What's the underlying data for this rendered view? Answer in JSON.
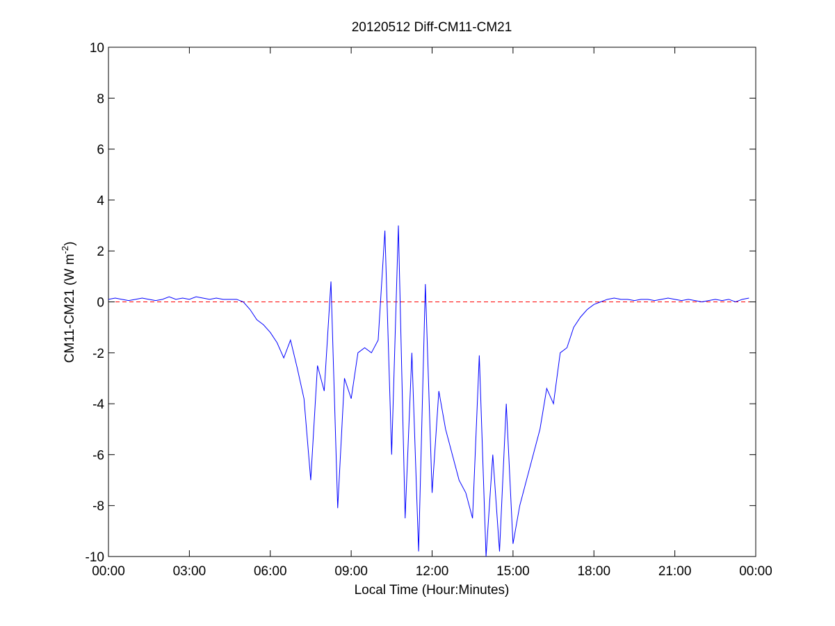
{
  "chart_data": {
    "type": "line",
    "title": "20120512 Diff-CM11-CM21",
    "xlabel": "Local Time (Hour:Minutes)",
    "ylabel": "CM11-CM21 (W m",
    "ylabel_sup": "-2",
    "ylabel_end": ")",
    "x": [
      0,
      0.25,
      0.5,
      0.75,
      1,
      1.25,
      1.5,
      1.75,
      2,
      2.25,
      2.5,
      2.75,
      3,
      3.25,
      3.5,
      3.75,
      4,
      4.25,
      4.5,
      4.75,
      5,
      5.25,
      5.5,
      5.75,
      6,
      6.25,
      6.5,
      6.75,
      7,
      7.25,
      7.5,
      7.75,
      8,
      8.25,
      8.5,
      8.75,
      9,
      9.25,
      9.5,
      9.75,
      10,
      10.25,
      10.5,
      10.75,
      11,
      11.25,
      11.5,
      11.75,
      12,
      12.25,
      12.5,
      12.75,
      13,
      13.25,
      13.5,
      13.75,
      14,
      14.25,
      14.5,
      14.75,
      15,
      15.25,
      15.5,
      15.75,
      16,
      16.25,
      16.5,
      16.75,
      17,
      17.25,
      17.5,
      17.75,
      18,
      18.25,
      18.5,
      18.75,
      19,
      19.25,
      19.5,
      19.75,
      20,
      20.25,
      20.5,
      20.75,
      21,
      21.25,
      21.5,
      21.75,
      22,
      22.25,
      22.5,
      22.75,
      23,
      23.25,
      23.5,
      23.75
    ],
    "series": [
      {
        "name": "CM11-CM21",
        "color": "#0000ff",
        "values": [
          0.1,
          0.15,
          0.1,
          0.05,
          0.1,
          0.15,
          0.1,
          0.05,
          0.1,
          0.2,
          0.1,
          0.15,
          0.1,
          0.2,
          0.15,
          0.1,
          0.15,
          0.1,
          0.1,
          0.1,
          0,
          -0.3,
          -0.7,
          -0.9,
          -1.2,
          -1.6,
          -2.2,
          -1.5,
          -2.6,
          -3.8,
          -7.0,
          -2.5,
          -3.5,
          0.8,
          -8.1,
          -3.0,
          -3.8,
          -2.0,
          -1.8,
          -2.0,
          -1.5,
          2.8,
          -6.0,
          3.0,
          -8.5,
          -2.0,
          -9.8,
          0.7,
          -7.5,
          -3.5,
          -5.0,
          -6.0,
          -7.0,
          -7.5,
          -8.5,
          -2.1,
          -10,
          -6,
          -9.8,
          -4,
          -9.5,
          -8,
          -7,
          -6,
          -5,
          -3.4,
          -4,
          -2,
          -1.8,
          -1,
          -0.6,
          -0.3,
          -0.1,
          0,
          0.1,
          0.15,
          0.1,
          0.1,
          0.05,
          0.1,
          0.1,
          0.05,
          0.1,
          0.15,
          0.1,
          0.05,
          0.1,
          0.05,
          0,
          0.05,
          0.1,
          0.05,
          0.1,
          0,
          0.1,
          0.15
        ]
      }
    ],
    "reference_line": {
      "value": 0,
      "color": "#ff0000",
      "style": "dashed"
    },
    "xlim": [
      0,
      24
    ],
    "xticks": [
      {
        "value": 0,
        "label": "00:00"
      },
      {
        "value": 3,
        "label": "03:00"
      },
      {
        "value": 6,
        "label": "06:00"
      },
      {
        "value": 9,
        "label": "09:00"
      },
      {
        "value": 12,
        "label": "12:00"
      },
      {
        "value": 15,
        "label": "15:00"
      },
      {
        "value": 18,
        "label": "18:00"
      },
      {
        "value": 21,
        "label": "21:00"
      },
      {
        "value": 24,
        "label": "00:00"
      }
    ],
    "ylim": [
      -10,
      10
    ],
    "yticks": [
      -10,
      -8,
      -6,
      -4,
      -2,
      0,
      2,
      4,
      6,
      8,
      10
    ],
    "grid": false
  }
}
